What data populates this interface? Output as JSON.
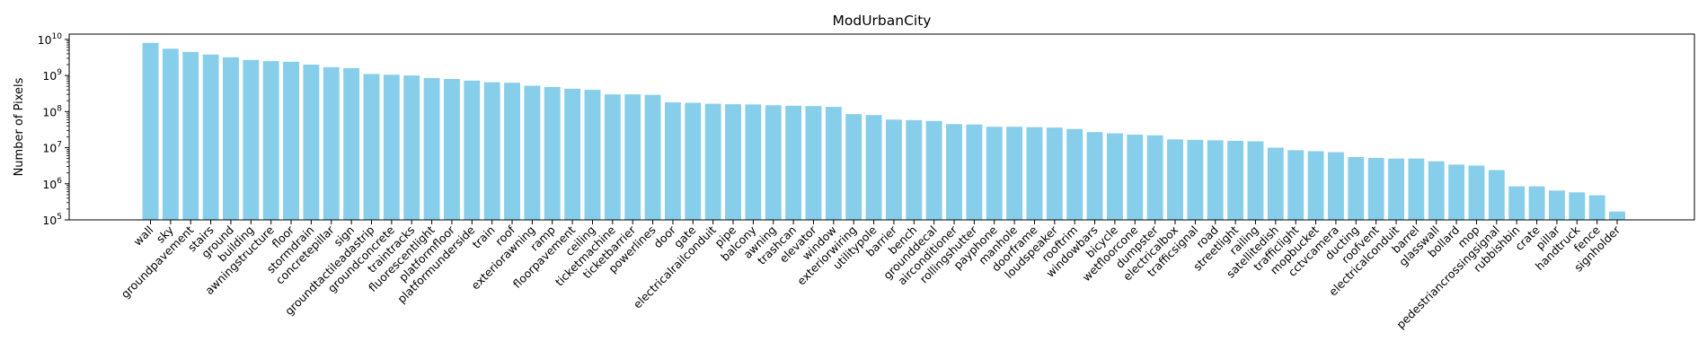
{
  "chart_data": {
    "type": "bar",
    "title": "ModUrbanCity",
    "xlabel": "",
    "ylabel": "Number of Pixels",
    "yscale": "log",
    "ylim": [
      100000,
      14000000000
    ],
    "yticks": [
      {
        "value": 100000,
        "base": "10",
        "exp": "5"
      },
      {
        "value": 1000000,
        "base": "10",
        "exp": "6"
      },
      {
        "value": 10000000,
        "base": "10",
        "exp": "7"
      },
      {
        "value": 100000000,
        "base": "10",
        "exp": "8"
      },
      {
        "value": 1000000000,
        "base": "10",
        "exp": "9"
      },
      {
        "value": 10000000000,
        "base": "10",
        "exp": "10"
      }
    ],
    "bar_color": "#87ceeb",
    "grid": false,
    "categories": [
      "wall",
      "sky",
      "groundpavement",
      "stairs",
      "ground",
      "building",
      "awningstructure",
      "floor",
      "stormdrain",
      "concretepillar",
      "sign",
      "groundtactileadastrip",
      "groundconcrete",
      "traintracks",
      "fluorescentlight",
      "platformfloor",
      "platformunderside",
      "train",
      "roof",
      "exteriorawning",
      "ramp",
      "floorpavement",
      "ceiling",
      "ticketmachine",
      "ticketbarrier",
      "powerlines",
      "door",
      "gate",
      "electricalrailconduit",
      "pipe",
      "balcony",
      "awning",
      "trashcan",
      "elevator",
      "window",
      "exteriorwiring",
      "utilitypole",
      "barrier",
      "bench",
      "grounddecal",
      "airconditioner",
      "rollingshutter",
      "payphone",
      "manhole",
      "doorframe",
      "loudspeaker",
      "rooftrim",
      "windowbars",
      "bicycle",
      "wetfloorcone",
      "dumpster",
      "electricalbox",
      "trafficsignal",
      "road",
      "streetlight",
      "railing",
      "satellitedish",
      "trafficlight",
      "mopbucket",
      "cctvcamera",
      "ducting",
      "roofvent",
      "electricalconduit",
      "barrel",
      "glasswall",
      "bollard",
      "mop",
      "pedestriancrossingsignal",
      "rubbishbin",
      "crate",
      "pillar",
      "handtruck",
      "fence",
      "signholder"
    ],
    "values": [
      8000000000,
      5500000000,
      4500000000,
      3800000000,
      3200000000,
      2700000000,
      2500000000,
      2400000000,
      2000000000,
      1700000000,
      1600000000,
      1100000000,
      1050000000,
      1000000000,
      850000000,
      800000000,
      720000000,
      650000000,
      630000000,
      520000000,
      480000000,
      430000000,
      400000000,
      300000000,
      300000000,
      290000000,
      180000000,
      175000000,
      165000000,
      160000000,
      158000000,
      150000000,
      145000000,
      142000000,
      135000000,
      85000000,
      80000000,
      60000000,
      58000000,
      55000000,
      45000000,
      44000000,
      38000000,
      38000000,
      37000000,
      36000000,
      33000000,
      27000000,
      25000000,
      23000000,
      22000000,
      17000000,
      16500000,
      16000000,
      15500000,
      15000000,
      10000000,
      8500000,
      8000000,
      7500000,
      5500000,
      5200000,
      5000000,
      5000000,
      4200000,
      3400000,
      3200000,
      2400000,
      850000,
      850000,
      650000,
      580000,
      480000,
      170000
    ]
  }
}
